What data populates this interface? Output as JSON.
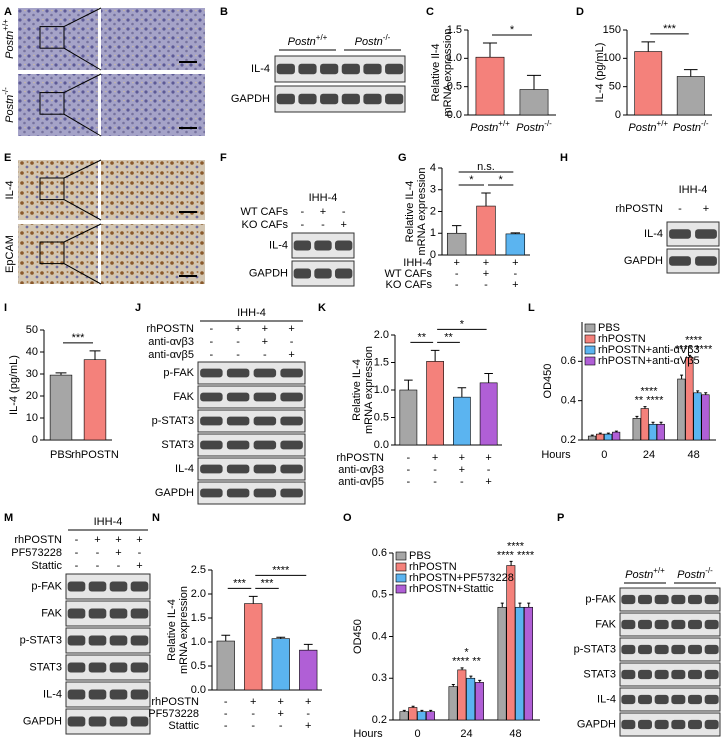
{
  "panel_letters": [
    "A",
    "B",
    "C",
    "D",
    "E",
    "F",
    "G",
    "H",
    "I",
    "J",
    "K",
    "L",
    "M",
    "N",
    "O",
    "P"
  ],
  "images": [
    {
      "row_labels": [
        {
          "text": "Postn",
          "sup": "+/+"
        },
        {
          "text": "Postn",
          "sup": "-/-"
        }
      ]
    },
    {
      "row_labels": [
        "IL-4",
        "EpCAM"
      ]
    }
  ],
  "blots": [
    {
      "groups": [
        {
          "text": "Postn",
          "sup": "+/+"
        },
        {
          "text": "Postn",
          "sup": "-/-"
        }
      ],
      "rows": [
        "IL-4",
        "GAPDH"
      ]
    },
    {
      "title": "IHH-4",
      "conditions": [
        {
          "name": "WT CAFs",
          "marks": [
            "-",
            "+",
            "-"
          ]
        },
        {
          "name": "KO CAFs",
          "marks": [
            "-",
            "-",
            "+"
          ]
        }
      ],
      "rows": [
        "IL-4",
        "GAPDH"
      ]
    },
    {
      "title": "IHH-4",
      "conditions": [
        {
          "name": "rhPOSTN",
          "marks": [
            "-",
            "+"
          ]
        }
      ],
      "rows": [
        "IL-4",
        "GAPDH"
      ]
    },
    {
      "title": "IHH-4",
      "conditions": [
        {
          "name": "rhPOSTN",
          "marks": [
            "-",
            "+",
            "+",
            "+"
          ]
        },
        {
          "name": "anti-αvβ3",
          "marks": [
            "-",
            "-",
            "+",
            "-"
          ]
        },
        {
          "name": "anti-αvβ5",
          "marks": [
            "-",
            "-",
            "-",
            "+"
          ]
        }
      ],
      "rows": [
        "p-FAK",
        "FAK",
        "p-STAT3",
        "STAT3",
        "IL-4",
        "GAPDH"
      ]
    },
    {
      "title": "IHH-4",
      "conditions": [
        {
          "name": "rhPOSTN",
          "marks": [
            "-",
            "+",
            "+",
            "+"
          ]
        },
        {
          "name": "PF573228",
          "marks": [
            "-",
            "-",
            "+",
            "-"
          ]
        },
        {
          "name": "Stattic",
          "marks": [
            "-",
            "-",
            "-",
            "+"
          ]
        }
      ],
      "rows": [
        "p-FAK",
        "FAK",
        "p-STAT3",
        "STAT3",
        "IL-4",
        "GAPDH"
      ]
    },
    {
      "groups": [
        {
          "text": "Postn",
          "sup": "+/+"
        },
        {
          "text": "Postn",
          "sup": "-/-"
        }
      ],
      "rows": [
        "p-FAK",
        "FAK",
        "p-STAT3",
        "STAT3",
        "IL-4",
        "GAPDH"
      ]
    }
  ],
  "chart_data": [
    {
      "type": "bar",
      "ylabel": [
        "Relative Il-4",
        "mRNA expression"
      ],
      "categories": [
        {
          "text": "Postn",
          "sup": "+/+"
        },
        {
          "text": "Postn",
          "sup": "-/-"
        }
      ],
      "values": [
        1.02,
        0.45
      ],
      "errors": [
        0.25,
        0.25
      ],
      "colors": [
        "#f4817b",
        "#a6a6a6"
      ],
      "ylim": [
        0,
        1.5
      ],
      "yticks": [
        {
          "value": 0,
          "label": "0.0"
        },
        0.5,
        {
          "value": 1,
          "label": "1.0"
        },
        1.5
      ],
      "significance": [
        {
          "from": 0,
          "to": 1,
          "label": "*"
        }
      ]
    },
    {
      "type": "bar",
      "ylabel": [
        "IL-4 (pg/mL)"
      ],
      "categories": [
        {
          "text": "Postn",
          "sup": "+/+"
        },
        {
          "text": "Postn",
          "sup": "-/-"
        }
      ],
      "values": [
        112,
        68
      ],
      "errors": [
        17,
        12
      ],
      "colors": [
        "#f4817b",
        "#a6a6a6"
      ],
      "ylim": [
        0,
        150
      ],
      "yticks": [
        0,
        50,
        100,
        150
      ],
      "significance": [
        {
          "from": 0,
          "to": 1,
          "label": "***"
        }
      ]
    },
    {
      "type": "bar",
      "ylabel": [
        "Relative IL-4",
        "mRNA expression"
      ],
      "conditions": [
        {
          "name": "IHH-4",
          "marks": [
            "+",
            "+",
            "+"
          ]
        },
        {
          "name": "WT CAFs",
          "marks": [
            "-",
            "+",
            "-"
          ]
        },
        {
          "name": "KO CAFs",
          "marks": [
            "-",
            "-",
            "+"
          ]
        }
      ],
      "values": [
        1.0,
        2.25,
        0.97
      ],
      "errors": [
        0.35,
        0.6,
        0.05
      ],
      "colors": [
        "#a6a6a6",
        "#f4817b",
        "#5bb4f0"
      ],
      "ylim": [
        0,
        4
      ],
      "yticks": [
        0,
        1,
        2,
        3,
        4
      ],
      "significance": [
        {
          "from": 0,
          "to": 1,
          "label": "*"
        },
        {
          "from": 1,
          "to": 2,
          "label": "*"
        },
        {
          "from": 0,
          "to": 2,
          "label": "n.s."
        }
      ]
    },
    {
      "type": "bar",
      "ylabel": [
        "IL-4 (pg/mL)"
      ],
      "categories": [
        "PBS",
        "rhPOSTN"
      ],
      "values": [
        29.5,
        36.5
      ],
      "errors": [
        1,
        4
      ],
      "colors": [
        "#a6a6a6",
        "#f4817b"
      ],
      "ylim": [
        0,
        50
      ],
      "yticks": [
        0,
        10,
        20,
        30,
        40,
        50
      ],
      "significance": [
        {
          "from": 0,
          "to": 1,
          "label": "***"
        }
      ]
    },
    {
      "type": "bar",
      "ylabel": [
        "Relative IL-4",
        "mRNA expression"
      ],
      "conditions": [
        {
          "name": "rhPOSTN",
          "marks": [
            "-",
            "+",
            "+",
            "+"
          ]
        },
        {
          "name": "anti-αvβ3",
          "marks": [
            "-",
            "-",
            "+",
            "-"
          ]
        },
        {
          "name": "anti-αvβ5",
          "marks": [
            "-",
            "-",
            "-",
            "+"
          ]
        }
      ],
      "values": [
        1.0,
        1.52,
        0.87,
        1.13
      ],
      "errors": [
        0.18,
        0.2,
        0.17,
        0.17
      ],
      "colors": [
        "#a6a6a6",
        "#f4817b",
        "#5bb4f0",
        "#b05fd6"
      ],
      "ylim": [
        0,
        2
      ],
      "yticks": [
        {
          "value": 0,
          "label": "0.0"
        },
        0.5,
        {
          "value": 1,
          "label": "1.0"
        },
        1.5,
        {
          "value": 2,
          "label": "2.0"
        }
      ],
      "significance": [
        {
          "from": 0,
          "to": 1,
          "label": "**"
        },
        {
          "from": 1,
          "to": 2,
          "label": "**"
        },
        {
          "from": 1,
          "to": 3,
          "label": "*"
        }
      ]
    },
    {
      "type": "bar",
      "ylabel": [
        "OD450"
      ],
      "xlabel": "Hours",
      "categories": [
        "0",
        "24",
        "48"
      ],
      "series": [
        {
          "name": "PBS",
          "color": "#a6a6a6",
          "values": [
            0.22,
            0.31,
            0.51
          ],
          "errors": [
            0.005,
            0.01,
            0.02
          ]
        },
        {
          "name": "rhPOSTN",
          "color": "#f4817b",
          "values": [
            0.23,
            0.36,
            0.62
          ],
          "errors": [
            0.005,
            0.01,
            0.01
          ]
        },
        {
          "name": "rhPOSTN+anti-αVβ3",
          "color": "#5bb4f0",
          "values": [
            0.23,
            0.28,
            0.44
          ],
          "errors": [
            0.005,
            0.01,
            0.01
          ]
        },
        {
          "name": "rhPOSTN+anti-αVβ5",
          "color": "#b05fd6",
          "values": [
            0.24,
            0.28,
            0.43
          ],
          "errors": [
            0.005,
            0.01,
            0.01
          ]
        }
      ],
      "ylim": [
        0.2,
        0.8
      ],
      "yticks": [
        0.2,
        0.4,
        0.6
      ],
      "annotations": [
        [],
        [
          "****",
          "** ****"
        ],
        [
          "****",
          "**** ****"
        ]
      ]
    },
    {
      "type": "bar",
      "ylabel": [
        "Relative IL-4",
        "mRNA expression"
      ],
      "conditions": [
        {
          "name": "rhPOSTN",
          "marks": [
            "-",
            "+",
            "+",
            "+"
          ]
        },
        {
          "name": "PF573228",
          "marks": [
            "-",
            "-",
            "+",
            "-"
          ]
        },
        {
          "name": "Stattic",
          "marks": [
            "-",
            "-",
            "-",
            "+"
          ]
        }
      ],
      "values": [
        1.02,
        1.8,
        1.07,
        0.83
      ],
      "errors": [
        0.12,
        0.15,
        0.03,
        0.12
      ],
      "colors": [
        "#a6a6a6",
        "#f4817b",
        "#5bb4f0",
        "#b05fd6"
      ],
      "ylim": [
        0,
        2.5
      ],
      "yticks": [
        {
          "value": 0,
          "label": "0.0"
        },
        0.5,
        {
          "value": 1,
          "label": "1.0"
        },
        1.5,
        {
          "value": 2,
          "label": "2.0"
        },
        2.5
      ],
      "significance": [
        {
          "from": 0,
          "to": 1,
          "label": "***"
        },
        {
          "from": 1,
          "to": 2,
          "label": "***"
        },
        {
          "from": 1,
          "to": 3,
          "label": "****"
        }
      ]
    },
    {
      "type": "bar",
      "ylabel": [
        "OD450"
      ],
      "xlabel": "Hours",
      "categories": [
        "0",
        "24",
        "48"
      ],
      "series": [
        {
          "name": "PBS",
          "color": "#a6a6a6",
          "values": [
            0.22,
            0.28,
            0.47
          ],
          "errors": [
            0.003,
            0.005,
            0.01
          ]
        },
        {
          "name": "rhPOSTN",
          "color": "#f4817b",
          "values": [
            0.23,
            0.32,
            0.57
          ],
          "errors": [
            0.003,
            0.005,
            0.01
          ]
        },
        {
          "name": "rhPOSTN+PF573228",
          "color": "#5bb4f0",
          "values": [
            0.22,
            0.3,
            0.47
          ],
          "errors": [
            0.003,
            0.005,
            0.01
          ]
        },
        {
          "name": "rhPOSTN+Stattic",
          "color": "#b05fd6",
          "values": [
            0.22,
            0.29,
            0.47
          ],
          "errors": [
            0.003,
            0.005,
            0.01
          ]
        }
      ],
      "ylim": [
        0.2,
        0.6
      ],
      "yticks": [
        0.2,
        0.3,
        0.4,
        0.5,
        0.6
      ],
      "annotations": [
        [],
        [
          "*",
          "**** **"
        ],
        [
          "****",
          "**** ****"
        ]
      ]
    }
  ]
}
